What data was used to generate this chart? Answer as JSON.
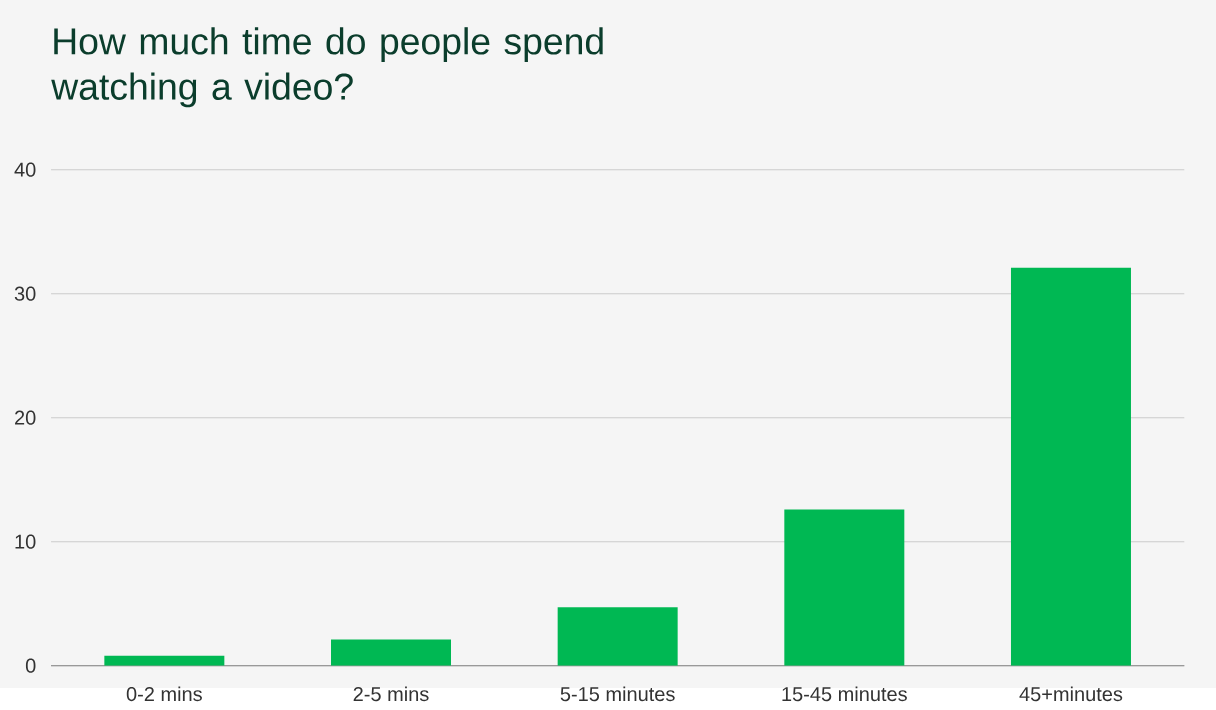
{
  "chart_data": {
    "type": "bar",
    "title": "How much time do people spend watching a video?",
    "categories": [
      "0-2 mins",
      "2-5 mins",
      "5-15 minutes",
      "15-45 minutes",
      "45+minutes"
    ],
    "values": [
      0.8,
      2.1,
      4.7,
      12.6,
      32.1
    ],
    "color": "#00b853",
    "ylim": [
      0,
      40
    ],
    "yticks": [
      0,
      10,
      20,
      30,
      40
    ],
    "grid": "y"
  }
}
